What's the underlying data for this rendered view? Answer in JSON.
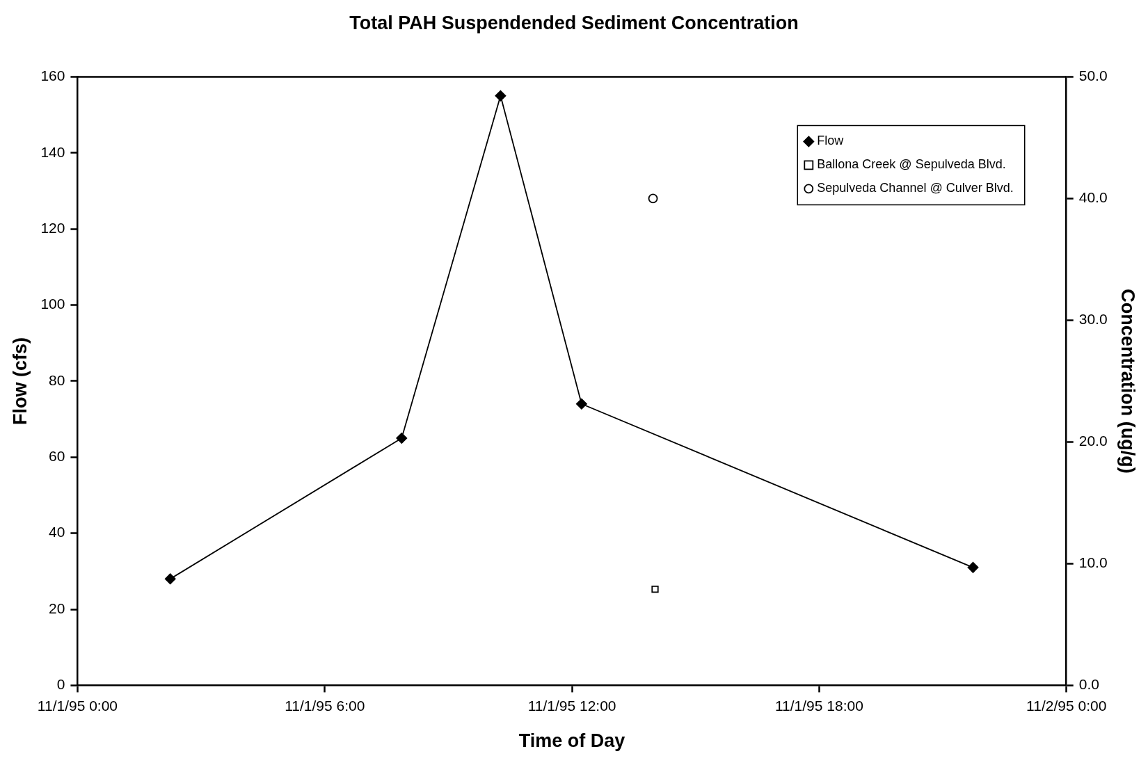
{
  "chart_data": {
    "type": "line",
    "title": "Total PAH Suspendended Sediment Concentration",
    "xlabel": "Time of Day",
    "ylabel": "Flow (cfs)",
    "y2label": "Concentration (ug/g)",
    "xlim": [
      "1995-11-01T00:00",
      "1995-11-02T00:00"
    ],
    "xticks": [
      {
        "value": "1995-11-01T00:00",
        "label": "11/1/95 0:00"
      },
      {
        "value": "1995-11-01T06:00",
        "label": "11/1/95 6:00"
      },
      {
        "value": "1995-11-01T12:00",
        "label": "11/1/95 12:00"
      },
      {
        "value": "1995-11-01T18:00",
        "label": "11/1/95 18:00"
      },
      {
        "value": "1995-11-02T00:00",
        "label": "11/2/95 0:00"
      }
    ],
    "ylim": [
      0,
      160
    ],
    "yticks": [
      0,
      20,
      40,
      60,
      80,
      100,
      120,
      140,
      160
    ],
    "y2lim": [
      0,
      50
    ],
    "y2ticks": [
      {
        "value": 0,
        "label": "0.0"
      },
      {
        "value": 10,
        "label": "10.0"
      },
      {
        "value": 20,
        "label": "20.0"
      },
      {
        "value": 30,
        "label": "30.0"
      },
      {
        "value": 40,
        "label": "40.0"
      },
      {
        "value": 50,
        "label": "50.0"
      }
    ],
    "grid": false,
    "legend": "top right",
    "series": [
      {
        "name": "Flow",
        "type": "line",
        "color": "#000000",
        "marker": "diamond",
        "x": [
          "1995-11-01T02:15",
          "1995-11-01T07:52",
          "1995-11-01T10:16",
          "1995-11-01T12:14",
          "1995-11-01T21:44"
        ],
        "values": [
          28,
          65,
          155,
          74,
          31
        ]
      },
      {
        "name": "Ballona Creek @ Sepulveda Blvd.",
        "type": "scatter",
        "axis": "y2",
        "color": "#000000",
        "marker": "square",
        "x": [
          "1995-11-01T14:01"
        ],
        "values": [
          7.9
        ]
      },
      {
        "name": "Sepulveda Channel @ Culver Blvd.",
        "type": "scatter",
        "axis": "y2",
        "color": "#000000",
        "marker": "circle",
        "x": [
          "1995-11-01T13:58"
        ],
        "values": [
          40.0
        ]
      }
    ]
  }
}
